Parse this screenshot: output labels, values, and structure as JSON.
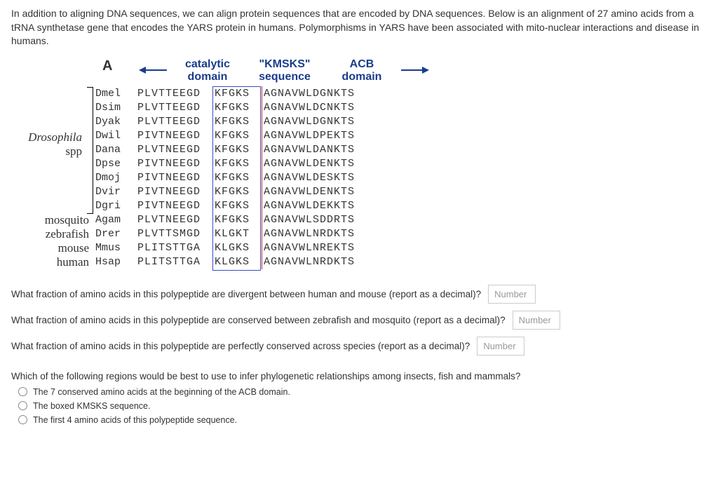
{
  "intro": "In addition to aligning DNA sequences, we can align protein sequences that are encoded by DNA sequences. Below is an alignment of 27 amino acids from a tRNA synthetase gene that encodes the YARS protein in humans. Polymorphisms in YARS have been associated with mito-nuclear interactions and disease in humans.",
  "panel_label": "A",
  "headers": {
    "catalytic_l1": "catalytic",
    "catalytic_l2": "domain",
    "kmsks_l1": "\"KMSKS\"",
    "kmsks_l2": "sequence",
    "acb_l1": "ACB",
    "acb_l2": "domain"
  },
  "arrow_color": "#1a3c8c",
  "box_color": "#3a4ec0",
  "sep_color": "#cc2a20",
  "side_labels": {
    "drosophila_l1": "Drosophila",
    "drosophila_l2": "spp",
    "mosquito": "mosquito",
    "zebrafish": "zebrafish",
    "mouse": "mouse",
    "human": "human"
  },
  "rows": [
    {
      "sp": "Dmel",
      "s1": "PLVTTEEGD",
      "s2": "KFGKS",
      "s3": "AGNAVWLDGNKTS"
    },
    {
      "sp": "Dsim",
      "s1": "PLVTTEEGD",
      "s2": "KFGKS",
      "s3": "AGNAVWLDCNKTS"
    },
    {
      "sp": "Dyak",
      "s1": "PLVTTEEGD",
      "s2": "KFGKS",
      "s3": "AGNAVWLDGNKTS"
    },
    {
      "sp": "Dwil",
      "s1": "PIVTNEEGD",
      "s2": "KFGKS",
      "s3": "AGNAVWLDPEKTS"
    },
    {
      "sp": "Dana",
      "s1": "PLVTNEEGD",
      "s2": "KFGKS",
      "s3": "AGNAVWLDANKTS"
    },
    {
      "sp": "Dpse",
      "s1": "PIVTNEEGD",
      "s2": "KFGKS",
      "s3": "AGNAVWLDENKTS"
    },
    {
      "sp": "Dmoj",
      "s1": "PIVTNEEGD",
      "s2": "KFGKS",
      "s3": "AGNAVWLDESKTS"
    },
    {
      "sp": "Dvir",
      "s1": "PIVTNEEGD",
      "s2": "KFGKS",
      "s3": "AGNAVWLDENKTS"
    },
    {
      "sp": "Dgri",
      "s1": "PIVTNEEGD",
      "s2": "KFGKS",
      "s3": "AGNAVWLDEKKTS"
    },
    {
      "sp": "Agam",
      "s1": "PLVTNEEGD",
      "s2": "KFGKS",
      "s3": "AGNAVWLSDDRTS"
    },
    {
      "sp": "Drer",
      "s1": "PLVTTSMGD",
      "s2": "KLGKT",
      "s3": "AGNAVWLNRDKTS"
    },
    {
      "sp": "Mmus",
      "s1": "PLITSTTGA",
      "s2": "KLGKS",
      "s3": "AGNAVWLNREKTS"
    },
    {
      "sp": "Hsap",
      "s1": "PLITSTTGA",
      "s2": "KLGKS",
      "s3": "AGNAVWLNRDKTS"
    }
  ],
  "questions": {
    "q1": "What fraction of amino acids in this polypeptide are divergent between human and mouse (report as a decimal)?",
    "q2": "What fraction of amino acids in this polypeptide are conserved between zebrafish and mosquito (report as a decimal)?",
    "q3": "What fraction of amino acids in this polypeptide are perfectly conserved across species (report as a decimal)?",
    "placeholder": "Number",
    "mc_prompt": "Which of the following regions would be best to use to infer phylogenetic relationships among insects, fish and mammals?",
    "mc_opts": [
      "The 7 conserved amino acids at the beginning of the ACB domain.",
      "The boxed KMSKS sequence.",
      "The first 4 amino acids of this polypeptide sequence."
    ]
  }
}
